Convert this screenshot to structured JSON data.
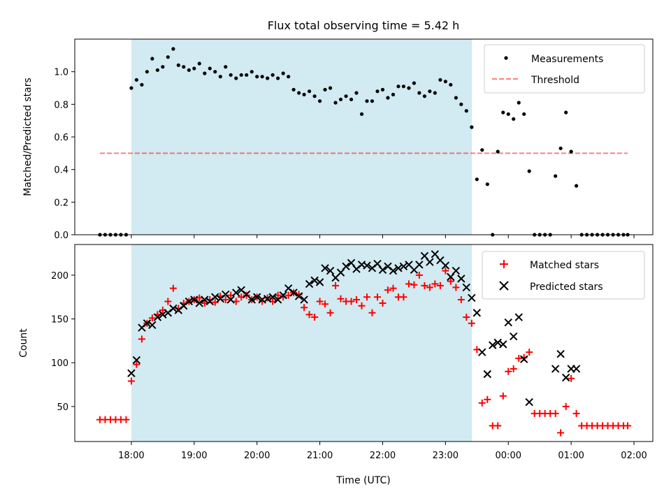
{
  "chart_data": {
    "title": "Flux total observing time = 5.42 h",
    "xlabel": "Time (UTC)",
    "x_ticks": [
      "18:00",
      "19:00",
      "20:00",
      "21:00",
      "22:00",
      "23:00",
      "00:00",
      "01:00",
      "02:00"
    ],
    "xlim": [
      -0.9,
      8.3
    ],
    "colors": {
      "shade": "#add8e6",
      "threshold": "#ff0000",
      "matched": "#ff0000",
      "predicted": "#000000",
      "measurement": "#000000"
    },
    "panels": [
      {
        "type": "scatter",
        "ylabel": "Matched/Predicted stars",
        "ylim": [
          0,
          1.2
        ],
        "y_ticks": [
          0.0,
          0.2,
          0.4,
          0.6,
          0.8,
          1.0
        ],
        "y_tick_labels": [
          "0.0",
          "0.2",
          "0.4",
          "0.6",
          "0.8",
          "1.0"
        ],
        "legend": {
          "placement": "top-right",
          "entries": [
            "Measurements",
            "Threshold"
          ]
        },
        "shaded_span": [
          0,
          5.42
        ],
        "threshold": {
          "value": 0.5,
          "x_range": [
            -0.5,
            7.9
          ]
        },
        "series": [
          {
            "name": "Measurements",
            "x": [
              -0.5,
              -0.417,
              -0.333,
              -0.25,
              -0.167,
              -0.083,
              0,
              0.083,
              0.167,
              0.25,
              0.333,
              0.417,
              0.5,
              0.583,
              0.667,
              0.75,
              0.833,
              0.917,
              1,
              1.083,
              1.167,
              1.25,
              1.333,
              1.417,
              1.5,
              1.583,
              1.667,
              1.75,
              1.833,
              1.917,
              2,
              2.083,
              2.167,
              2.25,
              2.333,
              2.417,
              2.5,
              2.583,
              2.667,
              2.75,
              2.833,
              2.917,
              3,
              3.083,
              3.167,
              3.25,
              3.333,
              3.417,
              3.5,
              3.583,
              3.667,
              3.75,
              3.833,
              3.917,
              4,
              4.083,
              4.167,
              4.25,
              4.333,
              4.417,
              4.5,
              4.583,
              4.667,
              4.75,
              4.833,
              4.917,
              5,
              5.083,
              5.167,
              5.25,
              5.333,
              5.417,
              5.5,
              5.583,
              5.667,
              5.75,
              5.833,
              5.917,
              6,
              6.083,
              6.167,
              6.25,
              6.333,
              6.417,
              6.5,
              6.583,
              6.667,
              6.75,
              6.833,
              6.917,
              7,
              7.083,
              7.167,
              7.25,
              7.333,
              7.417,
              7.5,
              7.583,
              7.667,
              7.75,
              7.833,
              7.9
            ],
            "y": [
              0,
              0,
              0,
              0,
              0,
              0,
              0.9,
              0.95,
              0.92,
              1.0,
              1.08,
              1.01,
              1.03,
              1.09,
              1.14,
              1.04,
              1.03,
              1.01,
              1.02,
              1.05,
              0.99,
              1.02,
              1.0,
              0.97,
              1.03,
              0.98,
              0.96,
              0.98,
              0.98,
              1.0,
              0.97,
              0.97,
              0.96,
              0.98,
              0.96,
              0.99,
              0.97,
              0.89,
              0.87,
              0.86,
              0.88,
              0.85,
              0.82,
              0.89,
              0.9,
              0.81,
              0.83,
              0.85,
              0.83,
              0.87,
              0.74,
              0.82,
              0.82,
              0.88,
              0.89,
              0.84,
              0.86,
              0.91,
              0.91,
              0.9,
              0.93,
              0.87,
              0.85,
              0.88,
              0.87,
              0.95,
              0.94,
              0.92,
              0.84,
              0.8,
              0.76,
              0.66,
              0.34,
              0.52,
              0.31,
              0.0,
              0.51,
              0.75,
              0.74,
              0.71,
              0.81,
              0.74,
              0.39,
              0.0,
              0.0,
              0.0,
              0.0,
              0.36,
              0.53,
              0.75,
              0.51,
              0.3,
              0.0,
              0.0,
              0.0,
              0.0,
              0.0,
              0.0,
              0.0,
              0.0,
              0.0,
              0.0
            ]
          }
        ]
      },
      {
        "type": "scatter",
        "ylabel": "Count",
        "ylim": [
          10,
          235
        ],
        "y_ticks": [
          50,
          100,
          150,
          200
        ],
        "y_tick_labels": [
          "50",
          "100",
          "150",
          "200"
        ],
        "legend": {
          "placement": "top-right",
          "entries": [
            "Matched stars",
            "Predicted stars"
          ]
        },
        "shaded_span": [
          0,
          5.42
        ],
        "series": [
          {
            "name": "Matched stars",
            "x": [
              -0.5,
              -0.417,
              -0.333,
              -0.25,
              -0.167,
              -0.083,
              0,
              0.083,
              0.167,
              0.25,
              0.333,
              0.417,
              0.5,
              0.583,
              0.667,
              0.75,
              0.833,
              0.917,
              1,
              1.083,
              1.167,
              1.25,
              1.333,
              1.417,
              1.5,
              1.583,
              1.667,
              1.75,
              1.833,
              1.917,
              2,
              2.083,
              2.167,
              2.25,
              2.333,
              2.417,
              2.5,
              2.583,
              2.667,
              2.75,
              2.833,
              2.917,
              3,
              3.083,
              3.167,
              3.25,
              3.333,
              3.417,
              3.5,
              3.583,
              3.667,
              3.75,
              3.833,
              3.917,
              4,
              4.083,
              4.167,
              4.25,
              4.333,
              4.417,
              4.5,
              4.583,
              4.667,
              4.75,
              4.833,
              4.917,
              5,
              5.083,
              5.167,
              5.25,
              5.333,
              5.417,
              5.5,
              5.583,
              5.667,
              5.75,
              5.833,
              5.917,
              6,
              6.083,
              6.167,
              6.25,
              6.333,
              6.417,
              6.5,
              6.583,
              6.667,
              6.75,
              6.833,
              6.917,
              7,
              7.083,
              7.167,
              7.25,
              7.333,
              7.417,
              7.5,
              7.583,
              7.667,
              7.75,
              7.833,
              7.9
            ],
            "y": [
              35,
              35,
              35,
              35,
              35,
              35,
              79,
              98,
              127,
              145,
              151,
              155,
              160,
              170,
              185,
              162,
              168,
              170,
              172,
              174,
              168,
              172,
              169,
              176,
              172,
              177,
              170,
              175,
              177,
              172,
              175,
              170,
              174,
              170,
              177,
              175,
              177,
              180,
              178,
              163,
              155,
              152,
              170,
              167,
              157,
              188,
              173,
              170,
              170,
              172,
              165,
              175,
              157,
              175,
              168,
              183,
              185,
              175,
              175,
              190,
              189,
              200,
              188,
              186,
              190,
              188,
              205,
              193,
              186,
              172,
              152,
              145,
              115,
              54,
              58,
              28,
              28,
              62,
              90,
              93,
              105,
              106,
              112,
              42,
              42,
              42,
              42,
              42,
              20,
              50,
              82,
              42,
              28,
              28,
              28,
              28,
              28,
              28,
              28,
              28,
              28,
              28
            ]
          },
          {
            "name": "Predicted stars",
            "x": [
              0,
              0.083,
              0.167,
              0.25,
              0.333,
              0.417,
              0.5,
              0.583,
              0.667,
              0.75,
              0.833,
              0.917,
              1,
              1.083,
              1.167,
              1.25,
              1.333,
              1.417,
              1.5,
              1.583,
              1.667,
              1.75,
              1.833,
              1.917,
              2,
              2.083,
              2.167,
              2.25,
              2.333,
              2.417,
              2.5,
              2.583,
              2.667,
              2.75,
              2.833,
              2.917,
              3,
              3.083,
              3.167,
              3.25,
              3.333,
              3.417,
              3.5,
              3.583,
              3.667,
              3.75,
              3.833,
              3.917,
              4,
              4.083,
              4.167,
              4.25,
              4.333,
              4.417,
              4.5,
              4.583,
              4.667,
              4.75,
              4.833,
              4.917,
              5,
              5.083,
              5.167,
              5.25,
              5.333,
              5.417,
              5.5,
              5.583,
              5.667,
              5.75,
              5.833,
              5.917,
              6,
              6.083,
              6.167,
              6.25,
              6.333,
              6.75,
              6.833,
              6.917,
              7,
              7.083
            ],
            "y": [
              88,
              103,
              140,
              145,
              143,
              152,
              155,
              157,
              162,
              160,
              165,
              170,
              172,
              168,
              172,
              170,
              175,
              173,
              178,
              172,
              180,
              183,
              178,
              172,
              175,
              172,
              173,
              175,
              172,
              177,
              185,
              180,
              176,
              172,
              190,
              194,
              192,
              208,
              205,
              197,
              203,
              210,
              214,
              207,
              212,
              211,
              208,
              213,
              206,
              210,
              205,
              208,
              210,
              212,
              206,
              212,
              222,
              215,
              224,
              217,
              211,
              198,
              205,
              196,
              186,
              174,
              157,
              112,
              87,
              120,
              123,
              121,
              146,
              130,
              152,
              104,
              55,
              93,
              110,
              83,
              93,
              93
            ]
          }
        ]
      }
    ]
  }
}
